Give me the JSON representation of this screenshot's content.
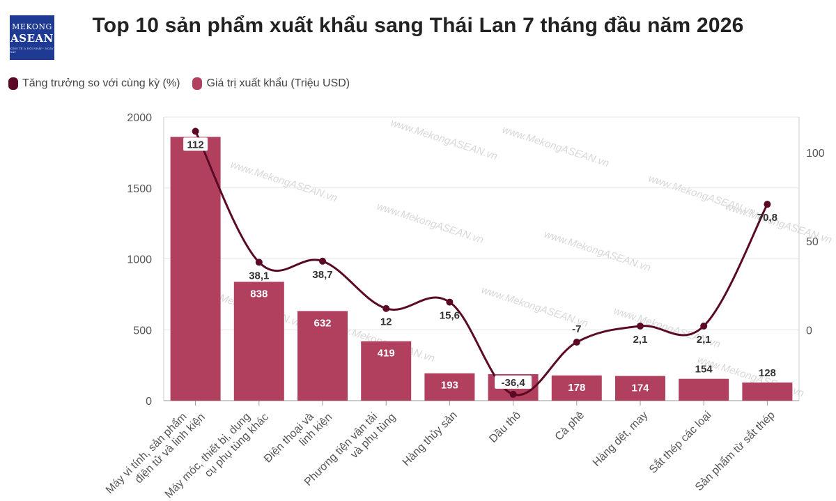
{
  "logo": {
    "line1": "MEKONG",
    "line2": "ASEAN",
    "line3": "KINH TẾ & HỘI NHẬP · NGÀY NAY"
  },
  "watermark": "www.MekongASEAN.vn",
  "chart_data": {
    "type": "bar",
    "title": "Top 10 sản phẩm xuất khẩu sang Thái Lan 7 tháng đầu năm 2026",
    "categories": [
      "Máy vi tính, sản phẩm điện tử và linh kiện",
      "Máy móc, thiết bị, dụng cụ phụ tùng khác",
      "Điện thoại và linh kiện",
      "Phương tiện vận tải và phụ tùng",
      "Hàng thủy sản",
      "Dầu thô",
      "Cà phê",
      "Hàng dệt, may",
      "Sắt thép các loại",
      "Sản phẩm từ sắt thép"
    ],
    "series": [
      {
        "name": "Giá trị xuất khẩu (Triệu USD)",
        "type": "bar",
        "axis": "left",
        "color": "#b0405e",
        "values": [
          1860,
          838,
          632,
          419,
          193,
          187,
          178,
          174,
          154,
          128
        ],
        "labels": [
          "",
          "838",
          "632",
          "419",
          "193",
          "",
          "178",
          "174",
          "154",
          "128"
        ]
      },
      {
        "name": "Tăng trưởng so với cùng kỳ (%)",
        "type": "line",
        "axis": "right",
        "color": "#5a0a26",
        "values": [
          112,
          38.1,
          38.7,
          12,
          15.6,
          -36.4,
          -7,
          2.1,
          2.1,
          70.8
        ],
        "labels": [
          "112",
          "38,1",
          "38,7",
          "12",
          "15,6",
          "-36,4",
          "-7",
          "2,1",
          "2,1",
          "70,8"
        ]
      }
    ],
    "y_left": {
      "range": [
        0,
        2000
      ],
      "ticks": [
        0,
        500,
        1000,
        1500,
        2000
      ]
    },
    "y_right": {
      "range": [
        -40,
        120
      ],
      "ticks": [
        0,
        50,
        100
      ]
    },
    "grid": true,
    "legend": "top-left"
  }
}
